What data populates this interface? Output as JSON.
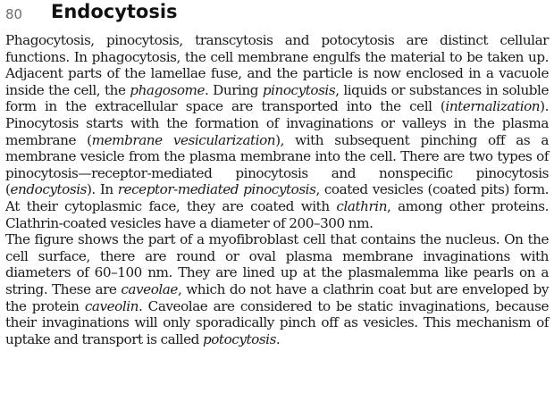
{
  "header": {
    "page_number": "80",
    "title": "Endocytosis"
  },
  "paragraph1": {
    "t1": "Phagocytosis, pinocytosis, transcytosis and potocytosis are distinct cellular functions. In phagocytosis, the cell membrane engulfs the material to be taken up. Adjacent parts of the lamellae fuse, and the particle is now enclosed in a vacuole inside the cell, the ",
    "i1": "phagosome",
    "t2": ". During ",
    "i2": "pinocytosis",
    "t3": ", liquids or substances in soluble form in the extracellular space are transported into the cell (",
    "i3": "internalization",
    "t4": "). Pinocytosis starts with the formation of invaginations or valleys in the plasma membrane (",
    "i4": "membrane vesicularization",
    "t5": "), with subsequent pinching off as a membrane vesicle from the plasma membrane into the cell. There are two types of pinocytosis—receptor-mediated pinocytosis and nonspecific pinocytosis (",
    "i5": "endocytosis",
    "t6": "). In ",
    "i6": "receptor-mediated pinocytosis",
    "t7": ", coated vesicles (coated pits) form. At their cytoplasmic face, they are coated with ",
    "i7": "clathrin",
    "t8": ", among other proteins. Clathrin-coated vesicles have a diameter of 200–300 nm."
  },
  "paragraph2": {
    "t1": "The figure shows the part of a myofibroblast cell that contains the nucleus. On the cell surface, there are round or oval plasma membrane invaginations with diameters of 60–100 nm. They are lined up at the plasmalemma like pearls on a string. These are ",
    "i1": "caveolae",
    "t2": ", which do not have a clathrin coat but are enveloped by the protein ",
    "i2": "caveolin",
    "t3": ". Caveolae are considered to be static invaginations, because their invaginations will only sporadically pinch off as vesicles. This mechanism of uptake and transport is called ",
    "i3": "potocytosis",
    "t4": "."
  }
}
